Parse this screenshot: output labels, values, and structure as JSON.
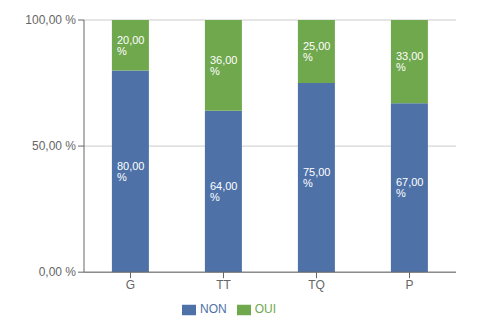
{
  "chart_data": {
    "type": "bar",
    "stacked": true,
    "categories": [
      "G",
      "TT",
      "TQ",
      "P"
    ],
    "series": [
      {
        "name": "NON",
        "color": "#4e72a8",
        "values": [
          80.0,
          64.0,
          75.0,
          67.0
        ],
        "value_labels": [
          "80,00 %",
          "64,00 %",
          "75,00 %",
          "67,00 %"
        ]
      },
      {
        "name": "OUI",
        "color": "#70a84e",
        "values": [
          20.0,
          36.0,
          25.0,
          33.0
        ],
        "value_labels": [
          "20,00 %",
          "36,00 %",
          "25,00 %",
          "33,00 %"
        ]
      }
    ],
    "ylim": [
      0,
      100
    ],
    "yticks": [
      {
        "value": 0,
        "label": "0,00 %"
      },
      {
        "value": 50,
        "label": "50,00 %"
      },
      {
        "value": 100,
        "label": "100,00 %"
      }
    ],
    "grid": true,
    "legend": "bottom",
    "data_labels": true
  }
}
